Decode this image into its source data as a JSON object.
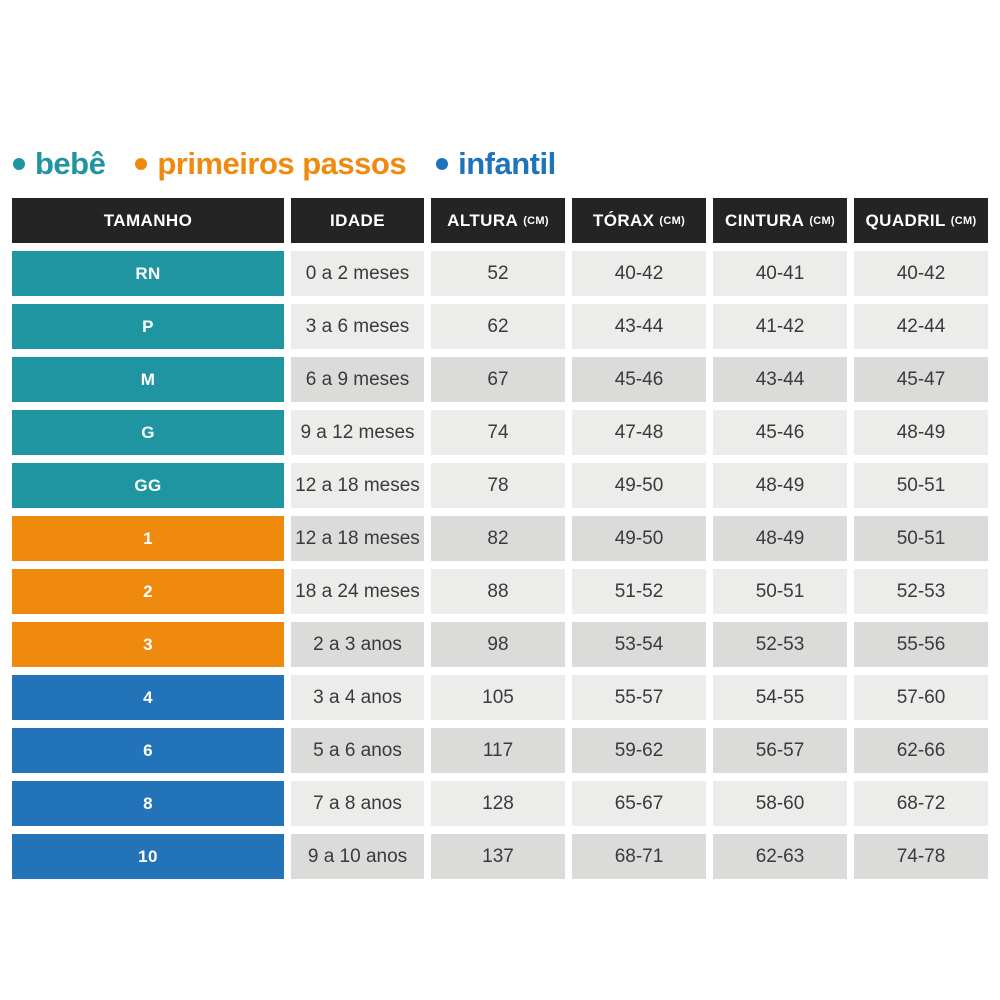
{
  "legend": {
    "bullet": "•",
    "items": [
      {
        "label": "bebê",
        "color": "#2095A2"
      },
      {
        "label": "primeiros passos",
        "color": "#F08A0F"
      },
      {
        "label": "infantil",
        "color": "#1E74BC"
      }
    ]
  },
  "table": {
    "header_bg": "#242424",
    "header_text_color": "#FFFFFF",
    "cell_light_bg": "#ECECEA",
    "cell_dark_bg": "#DBDBDA",
    "cell_text_color": "#3A3A3A",
    "group_colors": {
      "bebe": "#2095A2",
      "primeiros_passos": "#F08A0F",
      "infantil": "#2273B7"
    },
    "headers": [
      {
        "label": "TAMANHO",
        "unit": ""
      },
      {
        "label": "IDADE",
        "unit": ""
      },
      {
        "label": "ALTURA",
        "unit": "(CM)"
      },
      {
        "label": "TÓRAX",
        "unit": "(CM)"
      },
      {
        "label": "CINTURA",
        "unit": "(CM)"
      },
      {
        "label": "QUADRIL",
        "unit": "(CM)"
      }
    ],
    "rows": [
      {
        "size": "RN",
        "group": "bebe",
        "age": "0 a 2 meses",
        "altura": "52",
        "torax": "40-42",
        "cintura": "40-41",
        "quadril": "40-42",
        "shaded": false
      },
      {
        "size": "P",
        "group": "bebe",
        "age": "3 a 6 meses",
        "altura": "62",
        "torax": "43-44",
        "cintura": "41-42",
        "quadril": "42-44",
        "shaded": false
      },
      {
        "size": "M",
        "group": "bebe",
        "age": "6 a 9 meses",
        "altura": "67",
        "torax": "45-46",
        "cintura": "43-44",
        "quadril": "45-47",
        "shaded": true
      },
      {
        "size": "G",
        "group": "bebe",
        "age": "9 a 12 meses",
        "altura": "74",
        "torax": "47-48",
        "cintura": "45-46",
        "quadril": "48-49",
        "shaded": false
      },
      {
        "size": "GG",
        "group": "bebe",
        "age": "12 a 18 meses",
        "altura": "78",
        "torax": "49-50",
        "cintura": "48-49",
        "quadril": "50-51",
        "shaded": false
      },
      {
        "size": "1",
        "group": "primeiros_passos",
        "age": "12 a 18 meses",
        "altura": "82",
        "torax": "49-50",
        "cintura": "48-49",
        "quadril": "50-51",
        "shaded": true
      },
      {
        "size": "2",
        "group": "primeiros_passos",
        "age": "18 a 24 meses",
        "altura": "88",
        "torax": "51-52",
        "cintura": "50-51",
        "quadril": "52-53",
        "shaded": false
      },
      {
        "size": "3",
        "group": "primeiros_passos",
        "age": "2 a 3 anos",
        "altura": "98",
        "torax": "53-54",
        "cintura": "52-53",
        "quadril": "55-56",
        "shaded": true
      },
      {
        "size": "4",
        "group": "infantil",
        "age": "3 a 4 anos",
        "altura": "105",
        "torax": "55-57",
        "cintura": "54-55",
        "quadril": "57-60",
        "shaded": false
      },
      {
        "size": "6",
        "group": "infantil",
        "age": "5 a 6 anos",
        "altura": "117",
        "torax": "59-62",
        "cintura": "56-57",
        "quadril": "62-66",
        "shaded": true
      },
      {
        "size": "8",
        "group": "infantil",
        "age": "7 a 8 anos",
        "altura": "128",
        "torax": "65-67",
        "cintura": "58-60",
        "quadril": "68-72",
        "shaded": false
      },
      {
        "size": "10",
        "group": "infantil",
        "age": "9 a 10 anos",
        "altura": "137",
        "torax": "68-71",
        "cintura": "62-63",
        "quadril": "74-78",
        "shaded": true
      }
    ]
  },
  "chart_data": {
    "type": "table",
    "title": "",
    "legend": [
      "bebê",
      "primeiros passos",
      "infantil"
    ],
    "columns": [
      "TAMANHO",
      "IDADE",
      "ALTURA (CM)",
      "TÓRAX (CM)",
      "CINTURA (CM)",
      "QUADRIL (CM)"
    ],
    "rows": [
      [
        "RN",
        "0 a 2 meses",
        "52",
        "40-42",
        "40-41",
        "40-42"
      ],
      [
        "P",
        "3 a 6 meses",
        "62",
        "43-44",
        "41-42",
        "42-44"
      ],
      [
        "M",
        "6 a 9 meses",
        "67",
        "45-46",
        "43-44",
        "45-47"
      ],
      [
        "G",
        "9 a 12 meses",
        "74",
        "47-48",
        "45-46",
        "48-49"
      ],
      [
        "GG",
        "12 a 18 meses",
        "78",
        "49-50",
        "48-49",
        "50-51"
      ],
      [
        "1",
        "12 a 18 meses",
        "82",
        "49-50",
        "48-49",
        "50-51"
      ],
      [
        "2",
        "18 a 24 meses",
        "88",
        "51-52",
        "50-51",
        "52-53"
      ],
      [
        "3",
        "2 a 3 anos",
        "98",
        "53-54",
        "52-53",
        "55-56"
      ],
      [
        "4",
        "3 a 4 anos",
        "105",
        "55-57",
        "54-55",
        "57-60"
      ],
      [
        "6",
        "5 a 6 anos",
        "117",
        "59-62",
        "56-57",
        "62-66"
      ],
      [
        "8",
        "7 a 8 anos",
        "128",
        "65-67",
        "58-60",
        "68-72"
      ],
      [
        "10",
        "9 a 10 anos",
        "137",
        "68-71",
        "62-63",
        "74-78"
      ]
    ],
    "row_groups": [
      "bebe",
      "bebe",
      "bebe",
      "bebe",
      "bebe",
      "primeiros_passos",
      "primeiros_passos",
      "primeiros_passos",
      "infantil",
      "infantil",
      "infantil",
      "infantil"
    ]
  }
}
